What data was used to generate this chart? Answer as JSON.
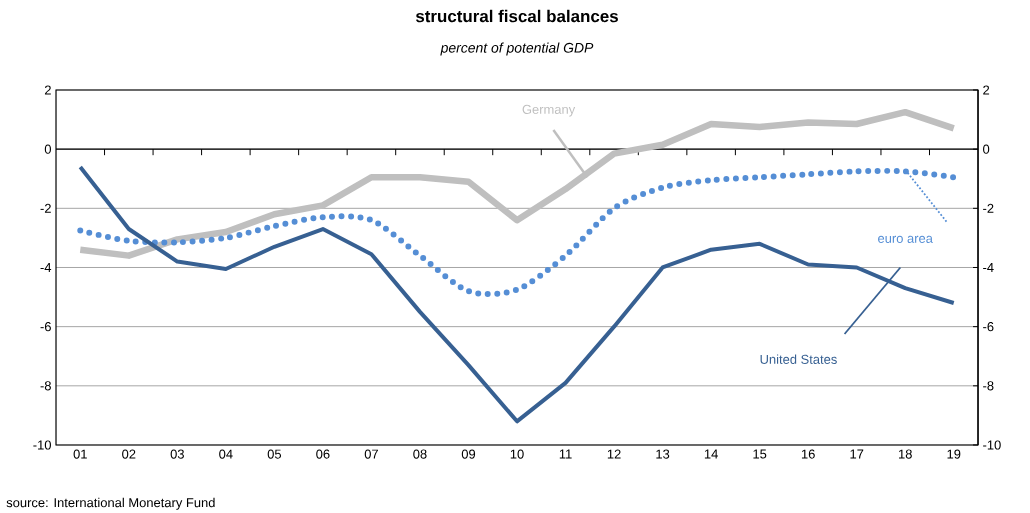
{
  "chart_data": {
    "type": "line",
    "title": "structural fiscal balances",
    "subtitle": "percent of potential GDP",
    "categories": [
      "01",
      "02",
      "03",
      "04",
      "05",
      "06",
      "07",
      "08",
      "09",
      "10",
      "11",
      "12",
      "13",
      "14",
      "15",
      "16",
      "17",
      "18",
      "19"
    ],
    "series": [
      {
        "name": "Germany",
        "color": "#bfbfbf",
        "values": [
          -3.4,
          -3.6,
          -3.05,
          -2.8,
          -2.2,
          -1.9,
          -0.95,
          -0.95,
          -1.1,
          -2.4,
          -1.35,
          -0.15,
          0.15,
          0.85,
          0.75,
          0.9,
          0.85,
          1.25,
          0.7
        ]
      },
      {
        "name": "euro area",
        "color": "#558ed5",
        "line_style": "dotted",
        "values": [
          -2.75,
          -3.1,
          -3.15,
          -3.0,
          -2.6,
          -2.3,
          -2.4,
          -3.6,
          -4.8,
          -4.75,
          -3.6,
          -2.0,
          -1.3,
          -1.05,
          -0.95,
          -0.85,
          -0.75,
          -0.75,
          -0.95
        ]
      },
      {
        "name": "United States",
        "color": "#376092",
        "values": [
          -0.6,
          -2.7,
          -3.8,
          -4.05,
          -3.3,
          -2.7,
          -3.55,
          -5.5,
          -7.3,
          -9.2,
          -7.9,
          -6.0,
          -4.0,
          -3.4,
          -3.2,
          -3.9,
          -4.0,
          -4.7,
          -5.2
        ]
      }
    ],
    "ylim": [
      -10,
      2
    ],
    "yticks": [
      -10,
      -8,
      -6,
      -4,
      -2,
      0,
      2
    ],
    "y2lim": [
      -10,
      2
    ],
    "y2ticks": [
      -10,
      -8,
      -6,
      -4,
      -2,
      0,
      2
    ],
    "grid": "y",
    "legend": false,
    "marker": "none",
    "line_style": "solid",
    "annotations": [
      "source:  International Monetary Fund"
    ]
  }
}
